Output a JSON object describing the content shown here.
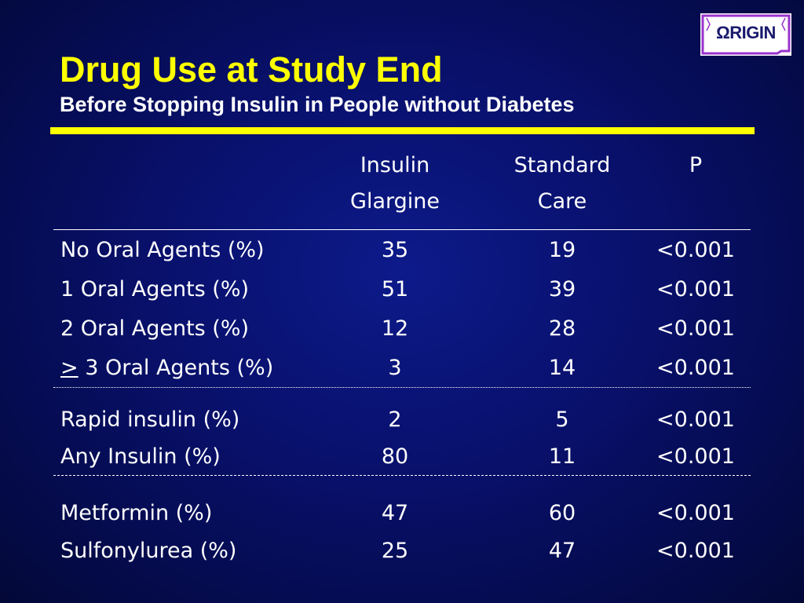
{
  "slide": {
    "title": "Drug Use at Study End",
    "subtitle": "Before Stopping Insulin in People without Diabetes",
    "logo_text": "ΩRIGIN",
    "colors": {
      "background": "#08106a",
      "title": "#ffff00",
      "rule": "#ffff00",
      "text": "#ffffff",
      "logo_text": "#1a1a6e",
      "logo_accent": "#9933cc"
    }
  },
  "table": {
    "columns": [
      "",
      "Insulin\nGlargine",
      "Standard\nCare",
      "P"
    ],
    "groups": [
      {
        "rows": [
          {
            "prefix": "",
            "label": "No Oral Agents (%)",
            "glargine": "35",
            "standard": "19",
            "p": "<0.001"
          },
          {
            "prefix": "",
            "label": "1 Oral Agents (%)",
            "glargine": "51",
            "standard": "39",
            "p": "<0.001"
          },
          {
            "prefix": "",
            "label": "2 Oral Agents (%)",
            "glargine": "12",
            "standard": "28",
            "p": "<0.001"
          },
          {
            "prefix": ">",
            "label": " 3 Oral Agents (%)",
            "glargine": "3",
            "standard": "14",
            "p": "<0.001"
          }
        ]
      },
      {
        "rows": [
          {
            "prefix": "",
            "label": "Rapid insulin (%)",
            "glargine": "2",
            "standard": "5",
            "p": "<0.001"
          },
          {
            "prefix": "",
            "label": "Any Insulin (%)",
            "glargine": "80",
            "standard": "11",
            "p": "<0.001"
          }
        ]
      },
      {
        "rows": [
          {
            "prefix": "",
            "label": "Metformin (%)",
            "glargine": "47",
            "standard": "60",
            "p": "<0.001"
          },
          {
            "prefix": "",
            "label": "Sulfonylurea (%)",
            "glargine": "25",
            "standard": "47",
            "p": "<0.001"
          }
        ]
      }
    ]
  }
}
